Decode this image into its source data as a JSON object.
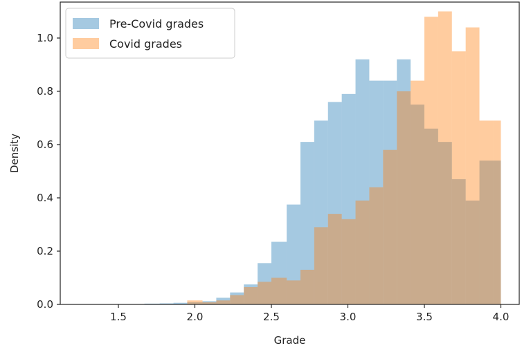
{
  "chart_data": {
    "type": "histogram",
    "xlabel": "Grade",
    "ylabel": "Density",
    "xlim": [
      1.12,
      4.12
    ],
    "ylim": [
      0,
      1.135
    ],
    "x_ticks": [
      1.5,
      2.0,
      2.5,
      3.0,
      3.5,
      4.0
    ],
    "x_tick_labels": [
      "1.5",
      "2.0",
      "2.5",
      "3.0",
      "3.5",
      "4.0"
    ],
    "y_ticks": [
      0.0,
      0.2,
      0.4,
      0.6,
      0.8,
      1.0
    ],
    "y_tick_labels": [
      "0.0",
      "0.2",
      "0.4",
      "0.6",
      "0.8",
      "1.0"
    ],
    "legend_position": "upper left",
    "bin_edges": [
      1.67,
      1.77,
      1.86,
      1.95,
      2.05,
      2.14,
      2.23,
      2.32,
      2.41,
      2.5,
      2.6,
      2.69,
      2.78,
      2.87,
      2.96,
      3.05,
      3.14,
      3.23,
      3.32,
      3.41,
      3.5,
      3.59,
      3.68,
      3.77,
      3.86,
      3.95,
      4.0
    ],
    "series": [
      {
        "name": "Pre-Covid grades",
        "color": "#1f77b4",
        "values": [
          0.003,
          0.004,
          0.006,
          0.008,
          0.012,
          0.025,
          0.045,
          0.075,
          0.155,
          0.235,
          0.375,
          0.61,
          0.69,
          0.76,
          0.79,
          0.92,
          0.84,
          0.84,
          0.92,
          0.75,
          0.66,
          0.61,
          0.47,
          0.39,
          0.54,
          0.54
        ]
      },
      {
        "name": "Covid grades",
        "color": "#ff7f0e",
        "values": [
          0.0,
          0.0,
          0.0,
          0.015,
          0.008,
          0.015,
          0.035,
          0.065,
          0.085,
          0.1,
          0.09,
          0.13,
          0.29,
          0.34,
          0.32,
          0.39,
          0.44,
          0.58,
          0.8,
          0.84,
          1.08,
          1.1,
          0.95,
          1.04,
          0.69,
          0.69
        ]
      }
    ]
  }
}
